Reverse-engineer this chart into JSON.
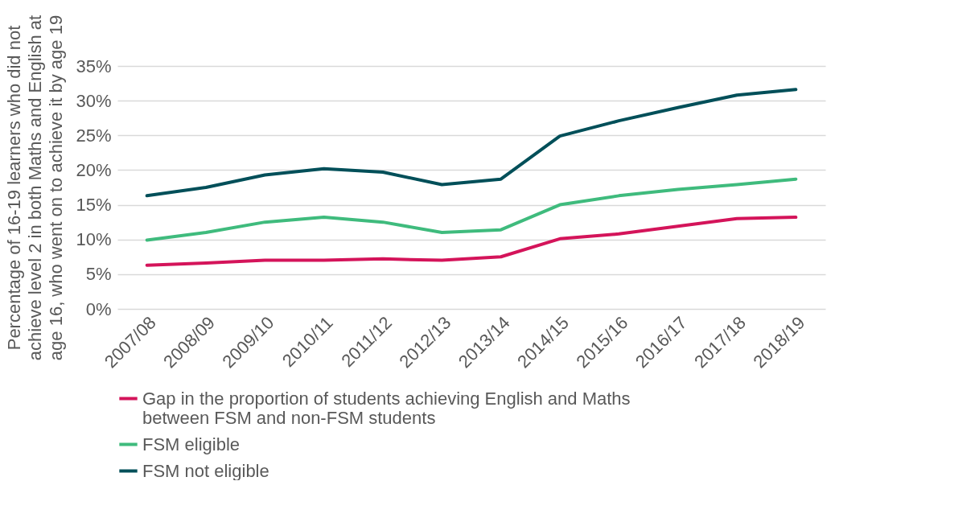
{
  "chart_data": {
    "type": "line",
    "ylabel": "Percentage of 16-19 learners who did not achieve level 2 in both Maths and English at age 16, who went on to achieve it by age 19",
    "categories": [
      "2007/08",
      "2008/09",
      "2009/10",
      "2010/11",
      "2011/12",
      "2012/13",
      "2013/14",
      "2014/15",
      "2015/16",
      "2016/17",
      "2017/18",
      "2018/19"
    ],
    "series": [
      {
        "name": "Gap in the proportion of students achieving English and Maths between FSM and non-FSM students",
        "color": "#d4145a",
        "values": [
          6.3,
          6.6,
          7.0,
          7.0,
          7.2,
          7.0,
          7.5,
          10.1,
          10.8,
          11.9,
          13.0,
          13.2
        ]
      },
      {
        "name": "FSM eligible",
        "color": "#3fbb7d",
        "values": [
          9.9,
          11.0,
          12.5,
          13.2,
          12.5,
          11.0,
          11.4,
          15.0,
          16.3,
          17.2,
          17.9,
          18.7
        ]
      },
      {
        "name": "FSM not eligible",
        "color": "#004f59",
        "values": [
          16.3,
          17.5,
          19.3,
          20.2,
          19.7,
          17.9,
          18.7,
          24.9,
          27.1,
          29.0,
          30.8,
          31.6
        ]
      }
    ],
    "ylim": [
      0,
      35
    ],
    "yticks": [
      {
        "value": 0,
        "label": "0%"
      },
      {
        "value": 5,
        "label": "5%"
      },
      {
        "value": 10,
        "label": "10%"
      },
      {
        "value": 15,
        "label": "15%"
      },
      {
        "value": 20,
        "label": "20%"
      },
      {
        "value": 25,
        "label": "25%"
      },
      {
        "value": 30,
        "label": "30%"
      },
      {
        "value": 35,
        "label": "35%"
      }
    ],
    "grid": "y",
    "legend": "bottom",
    "marker": "none",
    "line_style": "solid"
  }
}
